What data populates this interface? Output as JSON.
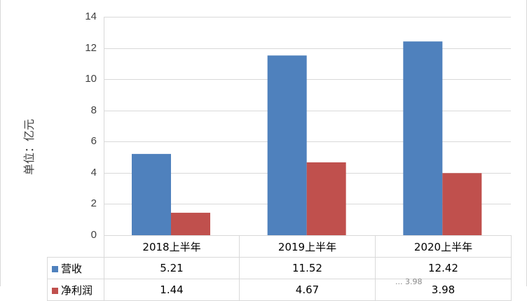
{
  "chart_data": {
    "type": "bar",
    "ylabel": "单位：亿元",
    "ylim": [
      0,
      14
    ],
    "yticks": [
      "0",
      "2",
      "4",
      "6",
      "8",
      "10",
      "12",
      "14"
    ],
    "categories": [
      "2018上半年",
      "2019上半年",
      "2020上半年"
    ],
    "grid": true,
    "legend": "data-table",
    "series": [
      {
        "name": "营收",
        "color": "#4f81bd",
        "values": [
          5.21,
          11.52,
          12.42
        ],
        "labels": [
          "5.21",
          "11.52",
          "12.42"
        ]
      },
      {
        "name": "净利润",
        "color": "#c0504d",
        "values": [
          1.44,
          4.67,
          3.98
        ],
        "labels": [
          "1.44",
          "4.67",
          "3.98"
        ]
      }
    ]
  },
  "watermark": "... 3.98"
}
